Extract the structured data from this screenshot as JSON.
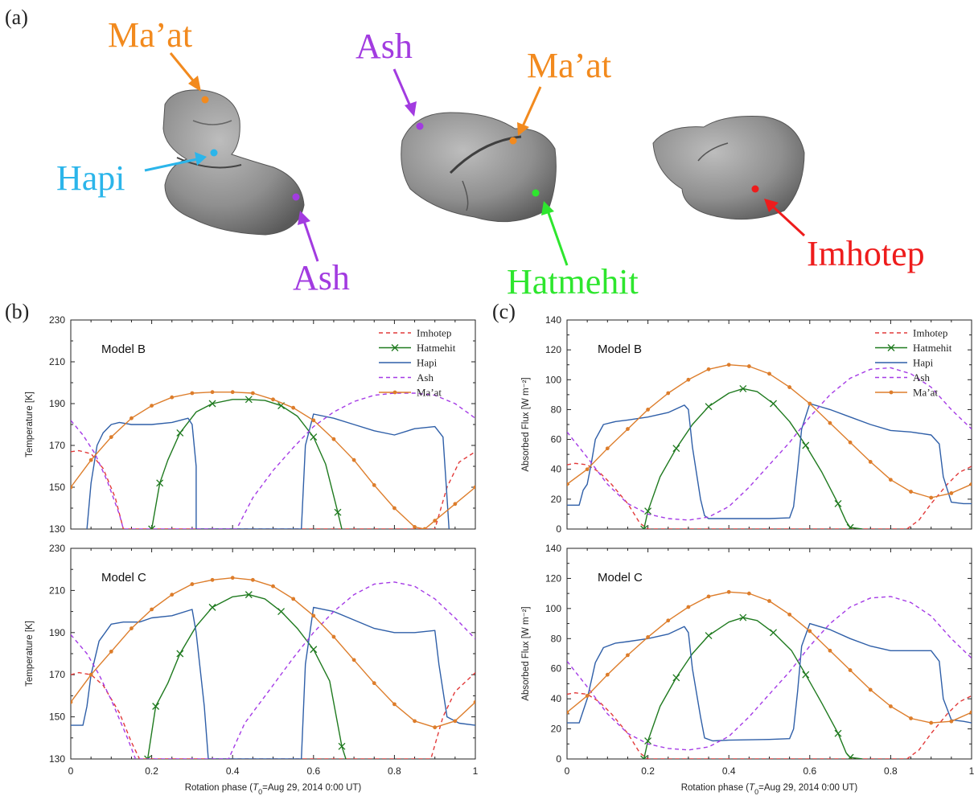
{
  "panel_labels": {
    "a": "(a)",
    "b": "(b)",
    "c": "(c)"
  },
  "top_panel": {
    "views": [
      {
        "labels": [
          {
            "text": "Ma’at",
            "color": "#f28a1e"
          },
          {
            "text": "Hapi",
            "color": "#2bb5ea"
          },
          {
            "text": "Ash",
            "color": "#a23be0"
          }
        ]
      },
      {
        "labels": [
          {
            "text": "Ash",
            "color": "#a23be0"
          },
          {
            "text": "Ma’at",
            "color": "#f28a1e"
          },
          {
            "text": "Hatmehit",
            "color": "#2ee62e"
          }
        ]
      },
      {
        "labels": [
          {
            "text": "Imhotep",
            "color": "#ee1c1c"
          }
        ]
      }
    ]
  },
  "legend_entries": [
    "Imhotep",
    "Hatmehit",
    "Hapi",
    "Ash",
    "Ma’at"
  ],
  "colors": {
    "Imhotep": "#e23a3a",
    "Hatmehit": "#1f7a1f",
    "Hapi": "#2f5fa8",
    "Ash": "#a53be6",
    "Maat": "#dd7d2b"
  },
  "chart_data": [
    {
      "type": "line",
      "panel": "b",
      "model": "Model B",
      "xlabel_prefix": "Rotation phase (",
      "xlabel_T": "T",
      "xlabel_sub": "0",
      "xlabel_suffix": "=Aug 29, 2014 0:00 UT)",
      "ylabel": "Temperature [K]",
      "xlim": [
        0,
        1
      ],
      "ylim": [
        130,
        230
      ],
      "xticks": [
        "0",
        "0.2",
        "0.4",
        "0.6",
        "0.8",
        "1"
      ],
      "yticks": [
        "130",
        "150",
        "170",
        "190",
        "210",
        "230"
      ],
      "series": [
        {
          "name": "Imhotep",
          "style": "dashed",
          "x": [
            0,
            0.02,
            0.05,
            0.08,
            0.11,
            0.13,
            0.9,
            0.93,
            0.96,
            1.0
          ],
          "y": [
            167,
            167.5,
            166,
            159,
            145,
            130,
            130,
            150,
            162,
            167
          ]
        },
        {
          "name": "Hatmehit",
          "style": "marker_x",
          "x": [
            0.2,
            0.22,
            0.24,
            0.27,
            0.31,
            0.35,
            0.4,
            0.44,
            0.48,
            0.52,
            0.56,
            0.6,
            0.63,
            0.66,
            0.67
          ],
          "y": [
            130,
            152,
            163,
            176,
            186,
            190,
            192,
            192,
            191.5,
            189,
            184,
            174,
            161,
            138,
            130
          ]
        },
        {
          "name": "Hapi",
          "style": "solid",
          "x": [
            0.04,
            0.05,
            0.065,
            0.08,
            0.1,
            0.12,
            0.15,
            0.2,
            0.25,
            0.29,
            0.3,
            0.31,
            0.31,
            0.57,
            0.58,
            0.6,
            0.65,
            0.7,
            0.75,
            0.8,
            0.85,
            0.9,
            0.92,
            0.93,
            0.935
          ],
          "y": [
            130,
            152,
            170,
            176,
            180,
            181,
            180,
            180,
            181,
            183,
            180,
            160,
            130,
            130,
            170,
            185,
            183,
            180,
            177,
            175,
            178,
            179,
            174,
            145,
            130
          ]
        },
        {
          "name": "Ash",
          "style": "dashed",
          "x": [
            0,
            0.03,
            0.06,
            0.09,
            0.12,
            0.13,
            0.41,
            0.45,
            0.5,
            0.55,
            0.6,
            0.65,
            0.7,
            0.75,
            0.8,
            0.85,
            0.9,
            0.95,
            1.0
          ],
          "y": [
            182,
            175,
            166,
            153,
            137,
            130,
            130,
            145,
            158,
            169,
            179,
            186,
            191,
            194,
            195,
            195,
            194,
            190,
            183
          ]
        },
        {
          "name": "Ma’at",
          "style": "marker_dot",
          "x": [
            0,
            0.05,
            0.1,
            0.15,
            0.2,
            0.25,
            0.3,
            0.35,
            0.4,
            0.45,
            0.5,
            0.55,
            0.6,
            0.65,
            0.7,
            0.75,
            0.8,
            0.85,
            0.875,
            0.9,
            0.95,
            1.0
          ],
          "y": [
            150,
            163,
            174,
            183,
            189,
            193,
            195,
            195.5,
            195.5,
            195,
            192,
            188,
            182,
            173,
            163,
            151,
            140,
            131,
            130,
            134,
            142,
            150
          ]
        }
      ]
    },
    {
      "type": "line",
      "panel": "b",
      "model": "Model C",
      "xlabel_prefix": "Rotation phase (",
      "xlabel_T": "T",
      "xlabel_sub": "0",
      "xlabel_suffix": "=Aug 29, 2014 0:00 UT)",
      "ylabel": "Temperature [K]",
      "xlim": [
        0,
        1
      ],
      "ylim": [
        130,
        230
      ],
      "xticks": [
        "0",
        "0.2",
        "0.4",
        "0.6",
        "0.8",
        "1"
      ],
      "yticks": [
        "130",
        "150",
        "170",
        "190",
        "210",
        "230"
      ],
      "series": [
        {
          "name": "Imhotep",
          "style": "dashed",
          "x": [
            0,
            0.02,
            0.05,
            0.08,
            0.12,
            0.15,
            0.17,
            0.89,
            0.92,
            0.95,
            1.0
          ],
          "y": [
            170,
            171,
            170,
            165,
            152,
            138,
            130,
            130,
            150,
            162,
            171
          ]
        },
        {
          "name": "Hatmehit",
          "style": "marker_x",
          "x": [
            0.19,
            0.21,
            0.24,
            0.27,
            0.31,
            0.35,
            0.4,
            0.44,
            0.48,
            0.52,
            0.56,
            0.6,
            0.64,
            0.67,
            0.68
          ],
          "y": [
            130,
            155,
            166,
            180,
            193,
            202,
            207,
            208,
            206,
            200,
            192,
            182,
            167,
            136,
            130
          ]
        },
        {
          "name": "Hapi",
          "style": "solid",
          "x": [
            0,
            0.03,
            0.04,
            0.05,
            0.07,
            0.1,
            0.13,
            0.17,
            0.2,
            0.25,
            0.3,
            0.31,
            0.33,
            0.34,
            0.57,
            0.58,
            0.6,
            0.65,
            0.7,
            0.75,
            0.8,
            0.85,
            0.9,
            0.91,
            0.93,
            0.96,
            1.0
          ],
          "y": [
            146,
            146,
            155,
            170,
            186,
            194,
            195,
            195,
            197,
            198,
            201,
            190,
            155,
            130,
            130,
            175,
            202,
            200,
            196,
            192,
            190,
            190,
            191,
            175,
            150,
            147,
            146
          ]
        },
        {
          "name": "Ash",
          "style": "dashed",
          "x": [
            0,
            0.04,
            0.07,
            0.1,
            0.14,
            0.16,
            0.39,
            0.43,
            0.5,
            0.55,
            0.6,
            0.65,
            0.7,
            0.75,
            0.8,
            0.85,
            0.9,
            0.95,
            1.0
          ],
          "y": [
            189,
            180,
            170,
            158,
            140,
            130,
            130,
            147,
            165,
            178,
            190,
            200,
            208,
            213,
            214,
            212,
            206,
            197,
            187
          ]
        },
        {
          "name": "Ma’at",
          "style": "marker_dot",
          "x": [
            0,
            0.05,
            0.1,
            0.15,
            0.2,
            0.25,
            0.3,
            0.35,
            0.4,
            0.45,
            0.5,
            0.55,
            0.6,
            0.65,
            0.7,
            0.75,
            0.8,
            0.85,
            0.9,
            0.95,
            1.0
          ],
          "y": [
            157,
            170,
            181,
            192,
            201,
            208,
            213,
            215,
            216,
            215,
            212,
            206,
            198,
            188,
            177,
            166,
            156,
            148,
            145,
            148,
            157
          ]
        }
      ]
    },
    {
      "type": "line",
      "panel": "c",
      "model": "Model B",
      "xlabel_prefix": "Rotation phase (",
      "xlabel_T": "T",
      "xlabel_sub": "0",
      "xlabel_suffix": "=Aug 29, 2014 0:00 UT)",
      "ylabel": "Absorbed Flux [W m⁻²]",
      "xlim": [
        0,
        1
      ],
      "ylim": [
        0,
        140
      ],
      "xticks": [
        "0",
        "0.2",
        "0.4",
        "0.6",
        "0.8",
        "1"
      ],
      "yticks": [
        "0",
        "20",
        "40",
        "60",
        "80",
        "100",
        "120",
        "140"
      ],
      "series": [
        {
          "name": "Imhotep",
          "style": "dashed",
          "x": [
            0,
            0.02,
            0.05,
            0.08,
            0.11,
            0.15,
            0.18,
            0.2,
            0.84,
            0.87,
            0.9,
            0.94,
            0.97,
            1.0
          ],
          "y": [
            43,
            44,
            43,
            38,
            30,
            17,
            4,
            0,
            0,
            6,
            17,
            30,
            38,
            42
          ]
        },
        {
          "name": "Hatmehit",
          "style": "marker_x",
          "x": [
            0.19,
            0.2,
            0.23,
            0.27,
            0.31,
            0.35,
            0.4,
            0.435,
            0.47,
            0.51,
            0.55,
            0.59,
            0.63,
            0.67,
            0.69,
            0.7,
            0.73
          ],
          "y": [
            0,
            12,
            35,
            54,
            70,
            82,
            91,
            94,
            92,
            84,
            72,
            56,
            38,
            17,
            5,
            1,
            0
          ]
        },
        {
          "name": "Hapi",
          "style": "solid",
          "x": [
            0,
            0.03,
            0.04,
            0.05,
            0.06,
            0.07,
            0.09,
            0.12,
            0.15,
            0.2,
            0.25,
            0.29,
            0.3,
            0.31,
            0.33,
            0.34,
            0.35,
            0.4,
            0.5,
            0.55,
            0.56,
            0.57,
            0.58,
            0.6,
            0.65,
            0.7,
            0.75,
            0.8,
            0.85,
            0.9,
            0.92,
            0.93,
            0.95,
            0.98,
            1.0
          ],
          "y": [
            16,
            16,
            26,
            30,
            44,
            60,
            70,
            72,
            73,
            75,
            78,
            83,
            80,
            55,
            20,
            9,
            7,
            7,
            7,
            7.5,
            15,
            40,
            67,
            84,
            80,
            75,
            70,
            66,
            65,
            63,
            57,
            35,
            18,
            17,
            17
          ]
        },
        {
          "name": "Ash",
          "style": "dashed",
          "x": [
            0,
            0.05,
            0.1,
            0.15,
            0.2,
            0.25,
            0.3,
            0.35,
            0.4,
            0.45,
            0.5,
            0.55,
            0.6,
            0.65,
            0.7,
            0.75,
            0.8,
            0.85,
            0.9,
            0.95,
            1.0
          ],
          "y": [
            65,
            48,
            30,
            17,
            10,
            7,
            6,
            8,
            15,
            28,
            43,
            58,
            75,
            90,
            101,
            107,
            108,
            104,
            95,
            80,
            67
          ]
        },
        {
          "name": "Ma’at",
          "style": "marker_dot",
          "x": [
            0,
            0.05,
            0.1,
            0.15,
            0.2,
            0.25,
            0.3,
            0.35,
            0.4,
            0.45,
            0.5,
            0.55,
            0.6,
            0.65,
            0.7,
            0.75,
            0.8,
            0.85,
            0.9,
            0.95,
            1.0
          ],
          "y": [
            30,
            40,
            54,
            67,
            80,
            91,
            100,
            107,
            110,
            109,
            104,
            95,
            84,
            71,
            58,
            45,
            33,
            25,
            21,
            24,
            30
          ]
        }
      ]
    },
    {
      "type": "line",
      "panel": "c",
      "model": "Model C",
      "xlabel_prefix": "Rotation phase (",
      "xlabel_T": "T",
      "xlabel_sub": "0",
      "xlabel_suffix": "=Aug 29, 2014 0:00 UT)",
      "ylabel": "Absorbed Flux [W m⁻²]",
      "xlim": [
        0,
        1
      ],
      "ylim": [
        0,
        140
      ],
      "xticks": [
        "0",
        "0.2",
        "0.4",
        "0.6",
        "0.8",
        "1"
      ],
      "yticks": [
        "0",
        "20",
        "40",
        "60",
        "80",
        "100",
        "120",
        "140"
      ],
      "series": [
        {
          "name": "Imhotep",
          "style": "dashed",
          "x": [
            0,
            0.02,
            0.05,
            0.08,
            0.11,
            0.15,
            0.18,
            0.2,
            0.84,
            0.87,
            0.9,
            0.94,
            0.97,
            1.0
          ],
          "y": [
            43,
            44,
            43,
            38,
            30,
            17,
            4,
            0,
            0,
            6,
            17,
            30,
            38,
            42
          ]
        },
        {
          "name": "Hatmehit",
          "style": "marker_x",
          "x": [
            0.19,
            0.2,
            0.23,
            0.27,
            0.31,
            0.35,
            0.4,
            0.435,
            0.47,
            0.51,
            0.555,
            0.59,
            0.63,
            0.67,
            0.69,
            0.7,
            0.73
          ],
          "y": [
            0,
            12,
            35,
            54,
            70,
            82,
            91,
            94,
            92,
            84,
            72,
            56,
            37,
            17,
            4,
            1,
            0
          ]
        },
        {
          "name": "Hapi",
          "style": "solid",
          "x": [
            0,
            0.03,
            0.04,
            0.05,
            0.06,
            0.07,
            0.09,
            0.12,
            0.15,
            0.2,
            0.25,
            0.29,
            0.3,
            0.31,
            0.33,
            0.34,
            0.36,
            0.4,
            0.5,
            0.55,
            0.56,
            0.57,
            0.58,
            0.6,
            0.65,
            0.7,
            0.75,
            0.8,
            0.85,
            0.9,
            0.92,
            0.93,
            0.95,
            0.98,
            1.0
          ],
          "y": [
            24,
            24,
            32,
            40,
            52,
            64,
            74,
            77,
            78,
            80,
            83,
            88,
            84,
            60,
            28,
            14,
            12,
            12.5,
            13,
            13.5,
            20,
            45,
            75,
            90,
            86,
            80,
            75,
            72,
            72,
            72,
            65,
            40,
            26,
            25,
            24
          ]
        },
        {
          "name": "Ash",
          "style": "dashed",
          "x": [
            0,
            0.05,
            0.1,
            0.15,
            0.2,
            0.25,
            0.3,
            0.35,
            0.4,
            0.45,
            0.5,
            0.55,
            0.6,
            0.65,
            0.7,
            0.75,
            0.8,
            0.85,
            0.9,
            0.95,
            1.0
          ],
          "y": [
            65,
            48,
            30,
            17,
            10,
            7,
            6,
            8,
            15,
            28,
            43,
            58,
            75,
            90,
            101,
            107,
            108,
            104,
            95,
            80,
            67
          ]
        },
        {
          "name": "Ma’at",
          "style": "marker_dot",
          "x": [
            0,
            0.05,
            0.1,
            0.15,
            0.2,
            0.25,
            0.3,
            0.35,
            0.4,
            0.45,
            0.5,
            0.55,
            0.6,
            0.65,
            0.7,
            0.75,
            0.8,
            0.85,
            0.9,
            0.95,
            1.0
          ],
          "y": [
            31,
            42,
            56,
            69,
            81,
            92,
            101,
            108,
            111,
            110,
            105,
            96,
            85,
            72,
            59,
            46,
            35,
            27,
            24,
            25,
            31
          ]
        }
      ]
    }
  ]
}
